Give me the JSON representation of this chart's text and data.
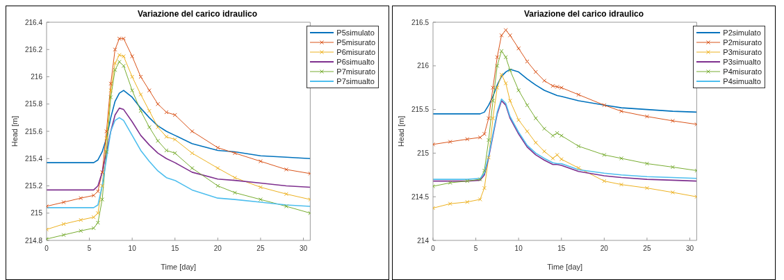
{
  "chart_data": [
    {
      "type": "line",
      "title": "Variazione del carico idraulico",
      "xlabel": "Time [day]",
      "ylabel": "Head [m]",
      "x": [
        0,
        2,
        4,
        5.5,
        6,
        6.5,
        7,
        7.5,
        8,
        8.5,
        9,
        10,
        11,
        12,
        13,
        14,
        15,
        17,
        20,
        22,
        25,
        28,
        30.8
      ],
      "xlim": [
        0,
        30.8
      ],
      "xticks": [
        0,
        5,
        10,
        15,
        20,
        25,
        30
      ],
      "ylim": [
        214.8,
        216.4
      ],
      "yticks": [
        214.8,
        215,
        215.2,
        215.4,
        215.6,
        215.8,
        216,
        216.2,
        216.4
      ],
      "grid": false,
      "legend": "top right",
      "line_style": "solid",
      "series": [
        {
          "name": "P5simulato",
          "color": "#0072bd",
          "marker": "none",
          "values": [
            215.37,
            215.37,
            215.37,
            215.37,
            215.39,
            215.45,
            215.55,
            215.7,
            215.82,
            215.88,
            215.9,
            215.85,
            215.77,
            215.7,
            215.64,
            215.6,
            215.57,
            215.51,
            215.46,
            215.45,
            215.42,
            215.41,
            215.4
          ]
        },
        {
          "name": "P5misurato",
          "color": "#d95319",
          "marker": "cross",
          "values": [
            215.05,
            215.08,
            215.11,
            215.13,
            215.16,
            215.3,
            215.6,
            215.95,
            216.2,
            216.28,
            216.28,
            216.15,
            216.0,
            215.9,
            215.8,
            215.74,
            215.72,
            215.6,
            215.48,
            215.44,
            215.38,
            215.32,
            215.29
          ]
        },
        {
          "name": "P6misurato",
          "color": "#edb120",
          "marker": "cross",
          "values": [
            214.88,
            214.92,
            214.95,
            214.97,
            215.0,
            215.2,
            215.55,
            215.9,
            216.1,
            216.16,
            216.15,
            216.0,
            215.87,
            215.75,
            215.63,
            215.56,
            215.54,
            215.44,
            215.33,
            215.26,
            215.19,
            215.14,
            215.1
          ]
        },
        {
          "name": "P6simualto",
          "color": "#7e2f8e",
          "marker": "none",
          "values": [
            215.17,
            215.17,
            215.17,
            215.17,
            215.2,
            215.3,
            215.45,
            215.6,
            215.72,
            215.77,
            215.76,
            215.67,
            215.57,
            215.5,
            215.44,
            215.4,
            215.37,
            215.3,
            215.25,
            215.24,
            215.22,
            215.2,
            215.19
          ]
        },
        {
          "name": "P7misurato",
          "color": "#77ac30",
          "marker": "cross",
          "values": [
            214.81,
            214.84,
            214.87,
            214.89,
            214.93,
            215.1,
            215.45,
            215.85,
            216.05,
            216.11,
            216.08,
            215.9,
            215.75,
            215.63,
            215.53,
            215.46,
            215.44,
            215.33,
            215.2,
            215.15,
            215.1,
            215.05,
            215.0
          ]
        },
        {
          "name": "P7simualto",
          "color": "#4dbeee",
          "marker": "none",
          "values": [
            215.04,
            215.04,
            215.04,
            215.04,
            215.06,
            215.2,
            215.4,
            215.6,
            215.68,
            215.7,
            215.68,
            215.57,
            215.46,
            215.38,
            215.31,
            215.26,
            215.24,
            215.17,
            215.11,
            215.1,
            215.08,
            215.06,
            215.05
          ]
        }
      ]
    },
    {
      "type": "line",
      "title": "Variazione del carico idraulico",
      "xlabel": "Time [day]",
      "ylabel": "Head [m]",
      "x": [
        0,
        2,
        4,
        5.5,
        6,
        6.5,
        7,
        7.5,
        8,
        8.5,
        9,
        10,
        11,
        12,
        13,
        14,
        14.5,
        15,
        17,
        20,
        22,
        25,
        28,
        30.8
      ],
      "xlim": [
        0,
        30.8
      ],
      "xticks": [
        0,
        5,
        10,
        15,
        20,
        25,
        30
      ],
      "ylim": [
        214,
        216.5
      ],
      "yticks": [
        214,
        214.5,
        215,
        215.5,
        216,
        216.5
      ],
      "grid": false,
      "legend": "top right",
      "line_style": "solid",
      "series": [
        {
          "name": "P2simulato",
          "color": "#0072bd",
          "marker": "none",
          "values": [
            215.45,
            215.45,
            215.45,
            215.45,
            215.47,
            215.55,
            215.65,
            215.78,
            215.88,
            215.93,
            215.96,
            215.93,
            215.85,
            215.78,
            215.72,
            215.68,
            215.66,
            215.65,
            215.6,
            215.55,
            215.52,
            215.5,
            215.48,
            215.47
          ]
        },
        {
          "name": "P2misurato",
          "color": "#d95319",
          "marker": "cross",
          "values": [
            215.1,
            215.13,
            215.16,
            215.18,
            215.22,
            215.4,
            215.75,
            216.1,
            216.35,
            216.41,
            216.35,
            216.2,
            216.05,
            215.93,
            215.83,
            215.77,
            215.76,
            215.75,
            215.67,
            215.55,
            215.48,
            215.42,
            215.37,
            215.33
          ]
        },
        {
          "name": "P3misurato",
          "color": "#edb120",
          "marker": "cross",
          "values": [
            214.37,
            214.42,
            214.44,
            214.47,
            214.6,
            214.95,
            215.4,
            215.75,
            215.9,
            215.8,
            215.6,
            215.38,
            215.25,
            215.12,
            215.02,
            214.94,
            214.98,
            214.93,
            214.83,
            214.68,
            214.64,
            214.6,
            214.55,
            214.5
          ]
        },
        {
          "name": "P3simualto",
          "color": "#7e2f8e",
          "marker": "none",
          "values": [
            214.68,
            214.68,
            214.68,
            214.69,
            214.75,
            214.95,
            215.2,
            215.45,
            215.6,
            215.55,
            215.4,
            215.22,
            215.07,
            214.98,
            214.92,
            214.87,
            214.87,
            214.86,
            214.79,
            214.74,
            214.72,
            214.7,
            214.69,
            214.68
          ]
        },
        {
          "name": "P4misurato",
          "color": "#77ac30",
          "marker": "cross",
          "values": [
            214.62,
            214.66,
            214.68,
            214.7,
            214.8,
            215.15,
            215.6,
            216.0,
            216.17,
            216.1,
            215.95,
            215.72,
            215.55,
            215.4,
            215.28,
            215.2,
            215.23,
            215.2,
            215.08,
            214.98,
            214.94,
            214.88,
            214.84,
            214.8
          ]
        },
        {
          "name": "P4simualto",
          "color": "#4dbeee",
          "marker": "none",
          "values": [
            214.7,
            214.7,
            214.7,
            214.71,
            214.77,
            214.97,
            215.22,
            215.47,
            215.62,
            215.57,
            215.42,
            215.24,
            215.09,
            215.0,
            214.94,
            214.89,
            214.88,
            214.88,
            214.81,
            214.77,
            214.75,
            214.73,
            214.72,
            214.71
          ]
        }
      ]
    }
  ]
}
